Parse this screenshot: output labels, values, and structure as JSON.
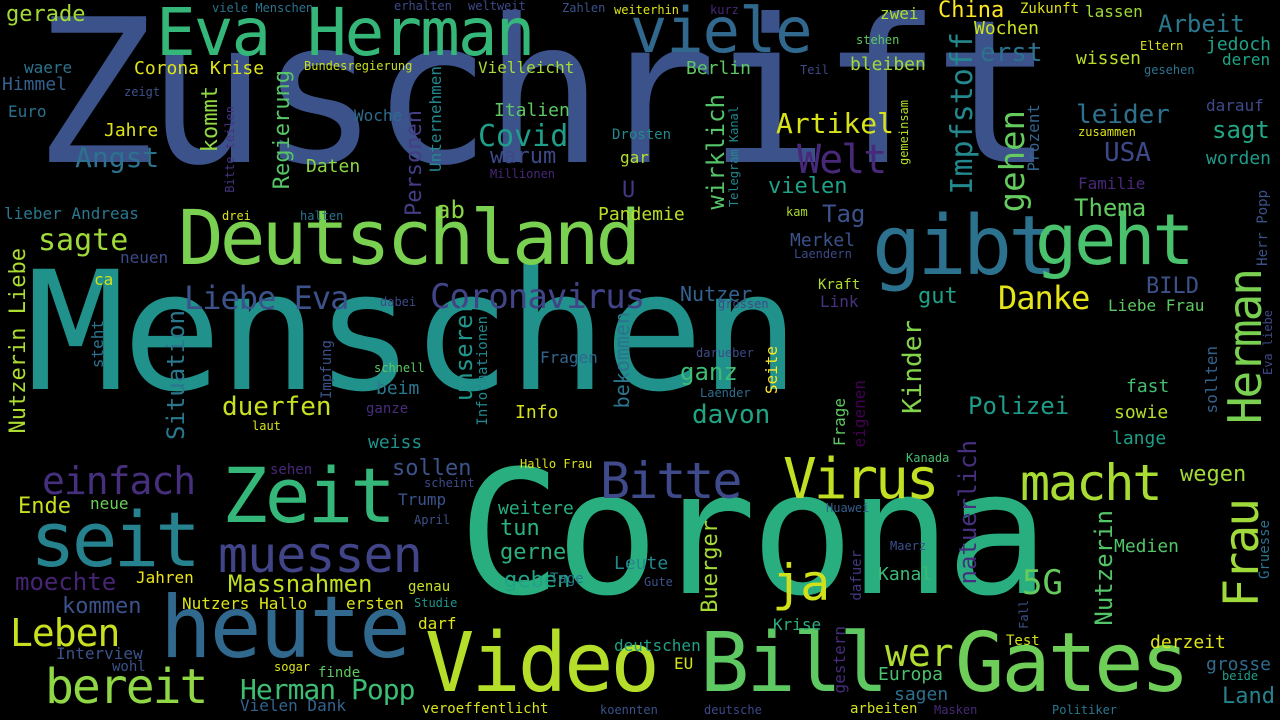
{
  "words": [
    {
      "text": "Menschen",
      "color": "#21918c"
    },
    {
      "text": "Zuschrift",
      "color": "#3b528b"
    },
    {
      "text": "Corona",
      "color": "#29af7f"
    },
    {
      "text": "heute",
      "color": "#31688e"
    },
    {
      "text": "Video",
      "color": "#b5de2b"
    },
    {
      "text": "Bill",
      "color": "#5ec962"
    },
    {
      "text": "Gates",
      "color": "#6ece58"
    },
    {
      "text": "Deutschland",
      "color": "#7ad151"
    },
    {
      "text": "gibt",
      "color": "#2c728e"
    },
    {
      "text": "geht",
      "color": "#4ac16d"
    },
    {
      "text": "Zeit",
      "color": "#35b779"
    },
    {
      "text": "seit",
      "color": "#26828e"
    },
    {
      "text": "muessen",
      "color": "#414487"
    },
    {
      "text": "Eva Herman",
      "color": "#35b779"
    },
    {
      "text": "viele",
      "color": "#31688e"
    },
    {
      "text": "Virus",
      "color": "#c2df23"
    },
    {
      "text": "macht",
      "color": "#a8db34"
    },
    {
      "text": "Bitte",
      "color": "#3e4a89"
    },
    {
      "text": "bereit",
      "color": "#8fd744"
    },
    {
      "text": "ja",
      "color": "#d0e11c"
    },
    {
      "text": "Frau",
      "color": "#9fda3a"
    },
    {
      "text": "Herman",
      "color": "#7ad151"
    },
    {
      "text": "wer",
      "color": "#b0dd2f"
    },
    {
      "text": "Leben",
      "color": "#c8e020"
    },
    {
      "text": "einfach",
      "color": "#46307e"
    },
    {
      "text": "Coronavirus",
      "color": "#414487"
    },
    {
      "text": "Liebe Eva",
      "color": "#3b528b"
    },
    {
      "text": "Danke",
      "color": "#e5e419"
    },
    {
      "text": "Herman Popp",
      "color": "#3dbc74"
    },
    {
      "text": "Massnahmen",
      "color": "#c2df23"
    },
    {
      "text": "Welt",
      "color": "#482878"
    },
    {
      "text": "Artikel",
      "color": "#d8e219"
    },
    {
      "text": "Angst",
      "color": "#2c728e"
    },
    {
      "text": "Covid",
      "color": "#1f9e89"
    },
    {
      "text": "sagte",
      "color": "#9fda3a"
    },
    {
      "text": "duerfen",
      "color": "#c8e020"
    },
    {
      "text": "davon",
      "color": "#20a486"
    },
    {
      "text": "Polizei",
      "color": "#1e9c89"
    },
    {
      "text": "ganz",
      "color": "#3dbc74"
    },
    {
      "text": "moechte",
      "color": "#482475"
    },
    {
      "text": "5G",
      "color": "#65cb5e"
    },
    {
      "text": "gehen",
      "color": "#65cb5e"
    },
    {
      "text": "Impfstoff",
      "color": "#23898e"
    },
    {
      "text": "Kinder",
      "color": "#84d44b"
    },
    {
      "text": "unserer",
      "color": "#1f968b"
    },
    {
      "text": "Situation",
      "color": "#2a788e"
    },
    {
      "text": "Nutzerin Liebe",
      "color": "#addc30"
    },
    {
      "text": "Ende",
      "color": "#c8e020"
    },
    {
      "text": "kommen",
      "color": "#3b528b"
    },
    {
      "text": "Regierung",
      "color": "#56c667"
    },
    {
      "text": "kommt",
      "color": "#90d743"
    },
    {
      "text": "Personen",
      "color": "#433e85"
    },
    {
      "text": "warum",
      "color": "#3e4989"
    },
    {
      "text": "Italien",
      "color": "#5ec962"
    },
    {
      "text": "gut",
      "color": "#1fa187"
    },
    {
      "text": "BILD",
      "color": "#3b528b"
    },
    {
      "text": "Nutzer",
      "color": "#34618d"
    },
    {
      "text": "wirklich",
      "color": "#54c568"
    },
    {
      "text": "vielen",
      "color": "#1fa188"
    },
    {
      "text": "bleiben",
      "color": "#a0da39"
    },
    {
      "text": "Berlin",
      "color": "#5ec962"
    },
    {
      "text": "Vielleicht",
      "color": "#a5db36"
    },
    {
      "text": "China",
      "color": "#fde725"
    },
    {
      "text": "Arbeit",
      "color": "#2a788e"
    },
    {
      "text": "erst",
      "color": "#2c728e"
    },
    {
      "text": "wissen",
      "color": "#b8de29"
    },
    {
      "text": "leider",
      "color": "#2d718e"
    },
    {
      "text": "sagt",
      "color": "#22a785"
    },
    {
      "text": "USA",
      "color": "#3e4989"
    },
    {
      "text": "worden",
      "color": "#1f9a8a"
    },
    {
      "text": "Thema",
      "color": "#60ca60"
    },
    {
      "text": "Tag",
      "color": "#3b528b"
    },
    {
      "text": "Merkel",
      "color": "#3b528b"
    },
    {
      "text": "Pandemie",
      "color": "#b8de29"
    },
    {
      "text": "ab",
      "color": "#8bd646"
    },
    {
      "text": "Nutzerin",
      "color": "#52c569"
    },
    {
      "text": "Medien",
      "color": "#52c569"
    },
    {
      "text": "wegen",
      "color": "#a2da37"
    },
    {
      "text": "fast",
      "color": "#44bf70"
    },
    {
      "text": "sowie",
      "color": "#b5de2b"
    },
    {
      "text": "lange",
      "color": "#1f9e89"
    },
    {
      "text": "gerne",
      "color": "#2cb17e"
    },
    {
      "text": "geben",
      "color": "#20a386"
    },
    {
      "text": "tun",
      "color": "#2db27d"
    },
    {
      "text": "weitere",
      "color": "#27ad81"
    },
    {
      "text": "Buerger",
      "color": "#a5db36"
    },
    {
      "text": "Leute",
      "color": "#23888e"
    },
    {
      "text": "Europa",
      "color": "#4ac16d"
    },
    {
      "text": "sagen",
      "color": "#2d708e"
    },
    {
      "text": "Kanal",
      "color": "#3aba76"
    },
    {
      "text": "Land",
      "color": "#25838e"
    },
    {
      "text": "grosse",
      "color": "#2f6c8e"
    },
    {
      "text": "derzeit",
      "color": "#dde318"
    },
    {
      "text": "Liebe Frau",
      "color": "#5ec962"
    },
    {
      "text": "natuerlich",
      "color": "#46307e"
    },
    {
      "text": "bekommen",
      "color": "#2c738e"
    },
    {
      "text": "Info",
      "color": "#d5e21a"
    },
    {
      "text": "sollen",
      "color": "#3b528b"
    },
    {
      "text": "weiss",
      "color": "#20928c"
    },
    {
      "text": "beim",
      "color": "#2a788e"
    },
    {
      "text": "Jahre",
      "color": "#dde318"
    },
    {
      "text": "Daten",
      "color": "#8bd646"
    },
    {
      "text": "Corona Krise",
      "color": "#dde318"
    },
    {
      "text": "waere",
      "color": "#2c738e"
    },
    {
      "text": "gerade",
      "color": "#a2da37"
    },
    {
      "text": "Himmel",
      "color": "#34608d"
    },
    {
      "text": "Euro",
      "color": "#2c728e"
    },
    {
      "text": "lieber Andreas",
      "color": "#2a778e"
    },
    {
      "text": "neuen",
      "color": "#3e4a89"
    },
    {
      "text": "ca",
      "color": "#d2e21b"
    },
    {
      "text": "steht",
      "color": "#2c718e"
    },
    {
      "text": "neue",
      "color": "#6ccd5a"
    },
    {
      "text": "Jahren",
      "color": "#ece51b"
    },
    {
      "text": "Nutzers Hallo",
      "color": "#dde318"
    },
    {
      "text": "ersten",
      "color": "#dde318"
    },
    {
      "text": "Interview",
      "color": "#3b528b"
    },
    {
      "text": "Vielen Dank",
      "color": "#33638d"
    },
    {
      "text": "Trump",
      "color": "#3b528b"
    },
    {
      "text": "Fragen",
      "color": "#32658e"
    },
    {
      "text": "Krise",
      "color": "#2cb17e"
    },
    {
      "text": "deutschen",
      "color": "#1fa187"
    },
    {
      "text": "Fall",
      "color": "#3b528b"
    },
    {
      "text": "Woche",
      "color": "#2f6b8e"
    },
    {
      "text": "Unternehmen",
      "color": "#24868e"
    },
    {
      "text": "U",
      "color": "#453781"
    },
    {
      "text": "gar",
      "color": "#b5de2b"
    },
    {
      "text": "Drosten",
      "color": "#23898e"
    },
    {
      "text": "Link",
      "color": "#46327e"
    },
    {
      "text": "Kraft",
      "color": "#addc30"
    },
    {
      "text": "grossen",
      "color": "#3e4a89"
    },
    {
      "text": "Seite",
      "color": "#fde725"
    },
    {
      "text": "Familie",
      "color": "#482878"
    },
    {
      "text": "Prozent",
      "color": "#32658e"
    },
    {
      "text": "Zukunft",
      "color": "#dde318"
    },
    {
      "text": "lassen",
      "color": "#a0da39"
    },
    {
      "text": "Wochen",
      "color": "#cae11f"
    },
    {
      "text": "jedoch",
      "color": "#1fa287"
    },
    {
      "text": "deren",
      "color": "#20a386"
    },
    {
      "text": "darauf",
      "color": "#3e4a89"
    },
    {
      "text": "Herr Popp",
      "color": "#3b528b"
    },
    {
      "text": "Gruesse",
      "color": "#2c738e"
    },
    {
      "text": "Eva liebe",
      "color": "#3e4989"
    },
    {
      "text": "sollten",
      "color": "#33638d"
    },
    {
      "text": "Kanada",
      "color": "#44bf70"
    },
    {
      "text": "Frage",
      "color": "#5ec962"
    },
    {
      "text": "eigenen",
      "color": "#440154"
    },
    {
      "text": "gestern",
      "color": "#472d7b"
    },
    {
      "text": "dafuer",
      "color": "#44397f"
    },
    {
      "text": "Maerz",
      "color": "#3b528b"
    },
    {
      "text": "Huawei",
      "color": "#355e8d"
    },
    {
      "text": "Gute",
      "color": "#3b528b"
    },
    {
      "text": "EU",
      "color": "#d8e219"
    },
    {
      "text": "Studie",
      "color": "#1f958b"
    },
    {
      "text": "darf",
      "color": "#dde318"
    },
    {
      "text": "Test",
      "color": "#d5e21a"
    },
    {
      "text": "finde",
      "color": "#5ec962"
    },
    {
      "text": "sogar",
      "color": "#dde318"
    },
    {
      "text": "wohl",
      "color": "#3b528b"
    },
    {
      "text": "veroeffentlicht",
      "color": "#d8e219"
    },
    {
      "text": "koennten",
      "color": "#3b528b"
    },
    {
      "text": "deutsche",
      "color": "#3e4989"
    },
    {
      "text": "arbeiten",
      "color": "#d0e11c"
    },
    {
      "text": "Masken",
      "color": "#482878"
    },
    {
      "text": "Politiker",
      "color": "#2a778e"
    },
    {
      "text": "beide",
      "color": "#1f9e89"
    },
    {
      "text": "Hallo Frau",
      "color": "#dde318"
    },
    {
      "text": "scheint",
      "color": "#3e4a89"
    },
    {
      "text": "April",
      "color": "#3b528b"
    },
    {
      "text": "Tage",
      "color": "#2a788e"
    },
    {
      "text": "genau",
      "color": "#c8e020"
    },
    {
      "text": "Informationen",
      "color": "#23898e"
    },
    {
      "text": "sehen",
      "color": "#482878"
    },
    {
      "text": "ganze",
      "color": "#472d7b"
    },
    {
      "text": "laut",
      "color": "#d8e219"
    },
    {
      "text": "Impfung",
      "color": "#3b528b"
    },
    {
      "text": "schnell",
      "color": "#5ec962"
    },
    {
      "text": "Laender",
      "color": "#2f6c8e"
    },
    {
      "text": "darueber",
      "color": "#3e4a89"
    },
    {
      "text": "dabei",
      "color": "#3e4a89"
    },
    {
      "text": "halten",
      "color": "#2c738e"
    },
    {
      "text": "drei",
      "color": "#dde318"
    },
    {
      "text": "Millionen",
      "color": "#482878"
    },
    {
      "text": "Bitte teilen",
      "color": "#46327e"
    },
    {
      "text": "Telegram Kanal",
      "color": "#24868e"
    },
    {
      "text": "kam",
      "color": "#addc30"
    },
    {
      "text": "Laendern",
      "color": "#3e4a89"
    },
    {
      "text": "zwei",
      "color": "#addc30"
    },
    {
      "text": "stehen",
      "color": "#5ec962"
    },
    {
      "text": "gemeinsam",
      "color": "#b5de2b"
    },
    {
      "text": "zusammen",
      "color": "#dde318"
    },
    {
      "text": "Eltern",
      "color": "#dde318"
    },
    {
      "text": "gesehen",
      "color": "#2c738e"
    },
    {
      "text": "Teil",
      "color": "#3e4989"
    },
    {
      "text": "Bundesregierung",
      "color": "#c8e020"
    },
    {
      "text": "zeigt",
      "color": "#3b528b"
    },
    {
      "text": "Jahr",
      "color": "#3b528b"
    },
    {
      "text": "viele Menschen",
      "color": "#2c738e"
    },
    {
      "text": "erhalten",
      "color": "#3e4a89"
    },
    {
      "text": "weltweit",
      "color": "#3e4a89"
    },
    {
      "text": "Zahlen",
      "color": "#3b528b"
    },
    {
      "text": "weiterhin",
      "color": "#dde318"
    },
    {
      "text": "kurz",
      "color": "#482878"
    }
  ]
}
